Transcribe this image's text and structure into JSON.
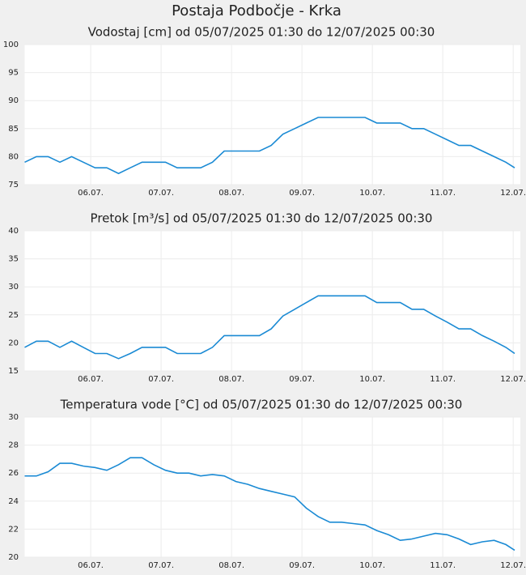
{
  "title": "Postaja Podbočje - Krka",
  "chart_data": [
    {
      "type": "line",
      "title": "Vodostaj [cm] od 05/07/2025 01:30 do 12/07/2025 00:30",
      "x": [
        0,
        4,
        8,
        12,
        16,
        20,
        24,
        28,
        32,
        36,
        40,
        44,
        48,
        52,
        56,
        60,
        64,
        68,
        72,
        76,
        80,
        84,
        88,
        92,
        96,
        100,
        104,
        108,
        112,
        116,
        120,
        124,
        128,
        132,
        136,
        140,
        144,
        148,
        152,
        156,
        160,
        164,
        167
      ],
      "values": [
        79,
        80,
        80,
        79,
        80,
        79,
        78,
        78,
        77,
        78,
        79,
        79,
        79,
        78,
        78,
        78,
        79,
        81,
        81,
        81,
        81,
        82,
        84,
        85,
        86,
        87,
        87,
        87,
        87,
        87,
        86,
        86,
        86,
        85,
        85,
        84,
        83,
        82,
        82,
        81,
        80,
        79,
        78
      ],
      "color": "#1a8ad4",
      "xlim": [
        0,
        167
      ],
      "ylim": [
        75,
        100
      ],
      "yticks": [
        75,
        80,
        85,
        90,
        95,
        100
      ],
      "xticks": [
        {
          "value": 22.5,
          "label": "06.07."
        },
        {
          "value": 46.5,
          "label": "07.07."
        },
        {
          "value": 70.5,
          "label": "08.07."
        },
        {
          "value": 94.5,
          "label": "09.07."
        },
        {
          "value": 118.5,
          "label": "10.07."
        },
        {
          "value": 142.5,
          "label": "11.07."
        },
        {
          "value": 166.5,
          "label": "12.07."
        }
      ],
      "grid": true
    },
    {
      "type": "line",
      "title": "Pretok [m³/s] od 05/07/2025 01:30 do 12/07/2025 00:30",
      "x": [
        0,
        4,
        8,
        12,
        16,
        20,
        24,
        28,
        32,
        36,
        40,
        44,
        48,
        52,
        56,
        60,
        64,
        68,
        72,
        76,
        80,
        84,
        88,
        92,
        96,
        100,
        104,
        108,
        112,
        116,
        120,
        124,
        128,
        132,
        136,
        140,
        144,
        148,
        152,
        156,
        160,
        164,
        167
      ],
      "values": [
        19.2,
        20.3,
        20.3,
        19.2,
        20.3,
        19.2,
        18.1,
        18.1,
        17.2,
        18.1,
        19.2,
        19.2,
        19.2,
        18.1,
        18.1,
        18.1,
        19.2,
        21.3,
        21.3,
        21.3,
        21.3,
        22.5,
        24.8,
        26.0,
        27.2,
        28.4,
        28.4,
        28.4,
        28.4,
        28.4,
        27.2,
        27.2,
        27.2,
        26.0,
        26.0,
        24.8,
        23.7,
        22.5,
        22.5,
        21.3,
        20.3,
        19.2,
        18.1
      ],
      "color": "#1a8ad4",
      "xlim": [
        0,
        167
      ],
      "ylim": [
        15,
        40
      ],
      "yticks": [
        15,
        20,
        25,
        30,
        35,
        40
      ],
      "xticks": [
        {
          "value": 22.5,
          "label": "06.07."
        },
        {
          "value": 46.5,
          "label": "07.07."
        },
        {
          "value": 70.5,
          "label": "08.07."
        },
        {
          "value": 94.5,
          "label": "09.07."
        },
        {
          "value": 118.5,
          "label": "10.07."
        },
        {
          "value": 142.5,
          "label": "11.07."
        },
        {
          "value": 166.5,
          "label": "12.07."
        }
      ],
      "grid": true
    },
    {
      "type": "line",
      "title": "Temperatura vode [°C] od 05/07/2025 01:30 do 12/07/2025 00:30",
      "x": [
        0,
        4,
        8,
        12,
        16,
        20,
        24,
        28,
        32,
        36,
        40,
        44,
        48,
        52,
        56,
        60,
        64,
        68,
        72,
        76,
        80,
        84,
        88,
        92,
        96,
        100,
        104,
        108,
        112,
        116,
        120,
        124,
        128,
        132,
        136,
        140,
        144,
        148,
        152,
        156,
        160,
        164,
        167
      ],
      "values": [
        25.8,
        25.8,
        26.1,
        26.7,
        26.7,
        26.5,
        26.4,
        26.2,
        26.6,
        27.1,
        27.1,
        26.6,
        26.2,
        26.0,
        26.0,
        25.8,
        25.9,
        25.8,
        25.4,
        25.2,
        24.9,
        24.7,
        24.5,
        24.3,
        23.5,
        22.9,
        22.5,
        22.5,
        22.4,
        22.3,
        21.9,
        21.6,
        21.2,
        21.3,
        21.5,
        21.7,
        21.6,
        21.3,
        20.9,
        21.1,
        21.2,
        20.9,
        20.5
      ],
      "color": "#1a8ad4",
      "xlim": [
        0,
        167
      ],
      "ylim": [
        20,
        30
      ],
      "yticks": [
        20,
        22,
        24,
        26,
        28,
        30
      ],
      "xticks": [
        {
          "value": 22.5,
          "label": "06.07."
        },
        {
          "value": 46.5,
          "label": "07.07."
        },
        {
          "value": 70.5,
          "label": "08.07."
        },
        {
          "value": 94.5,
          "label": "09.07."
        },
        {
          "value": 118.5,
          "label": "10.07."
        },
        {
          "value": 142.5,
          "label": "11.07."
        },
        {
          "value": 166.5,
          "label": "12.07."
        }
      ],
      "grid": true
    }
  ]
}
